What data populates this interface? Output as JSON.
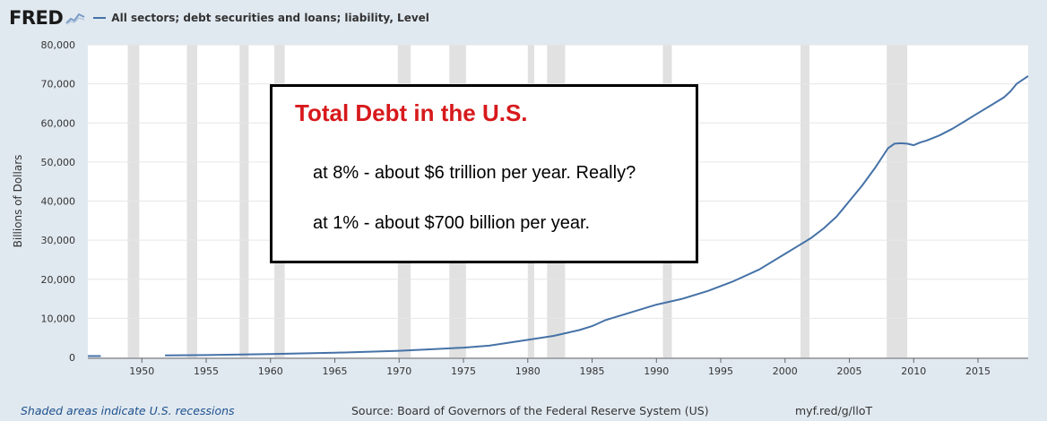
{
  "header": {
    "logo_text": "FRED",
    "series_label": "All sectors; debt securities and loans; liability, Level"
  },
  "annotation": {
    "title": "Total Debt in the U.S.",
    "line1": "at 8% - about $6 trillion per year. Really?",
    "line2": "at 1% - about $700 billion per year."
  },
  "footer": {
    "recession_note": "Shaded areas indicate U.S. recessions",
    "source": "Source: Board of Governors of the Federal Reserve System (US)",
    "short_link": "myf.red/g/lloT"
  },
  "colors": {
    "line": "#4572a7",
    "recession": "#e1e1e1",
    "annotation_title": "#d7191c",
    "background": "#e1e9f0"
  },
  "chart_data": {
    "type": "line",
    "ylabel": "Billions of Dollars",
    "xlabel": "",
    "ylim": [
      0,
      80000
    ],
    "xlim": [
      1945.8,
      2018.9
    ],
    "yticks": [
      0,
      10000,
      20000,
      30000,
      40000,
      50000,
      60000,
      70000,
      80000
    ],
    "ytick_labels": [
      "0",
      "10,000",
      "20,000",
      "30,000",
      "40,000",
      "50,000",
      "60,000",
      "70,000",
      "80,000"
    ],
    "xticks": [
      1950,
      1955,
      1960,
      1965,
      1970,
      1975,
      1980,
      1985,
      1990,
      1995,
      2000,
      2005,
      2010,
      2015
    ],
    "grid": true,
    "recessions": [
      [
        1948.9,
        1949.8
      ],
      [
        1953.5,
        1954.3
      ],
      [
        1957.6,
        1958.3
      ],
      [
        1960.3,
        1961.1
      ],
      [
        1969.9,
        1970.9
      ],
      [
        1973.9,
        1975.2
      ],
      [
        1980.0,
        1980.5
      ],
      [
        1981.5,
        1982.9
      ],
      [
        1990.5,
        1991.2
      ],
      [
        2001.2,
        2001.9
      ],
      [
        2007.9,
        2009.5
      ]
    ],
    "series": [
      {
        "name": "All sectors; debt securities and loans; liability, Level",
        "segments": [
          {
            "x": [
              1945.8,
              1946.8
            ],
            "y": [
              350,
              350
            ]
          },
          {
            "x": [
              1951.8,
              1955,
              1960,
              1965,
              1970,
              1972,
              1975,
              1977,
              1980,
              1982,
              1984,
              1985,
              1986,
              1988,
              1990,
              1992,
              1994,
              1996,
              1998,
              2000,
              2001,
              2002,
              2003,
              2004,
              2004.5,
              2005,
              2006,
              2007,
              2007.5,
              2008,
              2008.5,
              2009,
              2009.5,
              2010,
              2010.5,
              2011,
              2012,
              2013,
              2014,
              2015,
              2016,
              2017,
              2017.5,
              2018,
              2018.9
            ],
            "y": [
              500,
              600,
              850,
              1200,
              1700,
              2000,
              2500,
              3000,
              4500,
              5500,
              7000,
              8000,
              9500,
              11500,
              13500,
              15000,
              17000,
              19500,
              22500,
              26500,
              28500,
              30500,
              33000,
              36000,
              38000,
              40000,
              44000,
              48500,
              51000,
              53500,
              54700,
              54800,
              54700,
              54300,
              55000,
              55500,
              56800,
              58500,
              60500,
              62500,
              64500,
              66500,
              68000,
              70000,
              72000
            ]
          }
        ]
      }
    ]
  }
}
